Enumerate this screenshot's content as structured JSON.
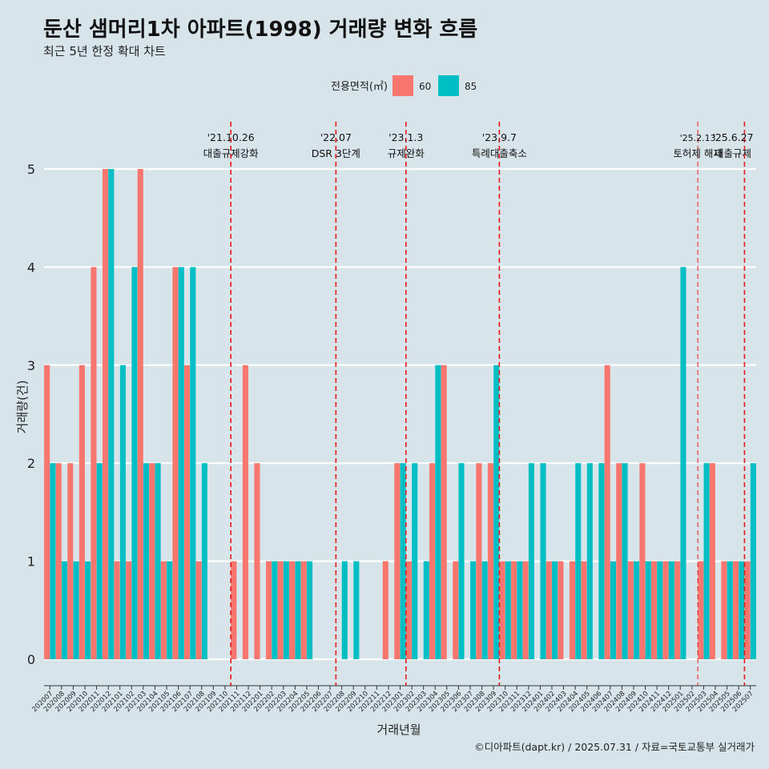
{
  "chart_data": {
    "type": "bar",
    "title": "둔산 샘머리1차 아파트(1998) 거래량 변화 흐름",
    "subtitle": "최근 5년 한정 확대 차트",
    "xlabel": "거래년월",
    "ylabel": "거래량(건)",
    "caption": "©디아파트(dapt.kr) / 2025.07.31 / 자료=국토교통부 실거래가",
    "legend": {
      "title": "전용면적(㎡)",
      "position": "top-center"
    },
    "ylim": [
      0,
      5
    ],
    "yticks": [
      "0",
      "1",
      "2",
      "3",
      "4",
      "5"
    ],
    "categories": [
      "202007",
      "202008",
      "202009",
      "202010",
      "202011",
      "202012",
      "202101",
      "202102",
      "202103",
      "202104",
      "202105",
      "202106",
      "202107",
      "202108",
      "202109",
      "202110",
      "202111",
      "202112",
      "202201",
      "202202",
      "202203",
      "202204",
      "202205",
      "202206",
      "202207",
      "202208",
      "202209",
      "202210",
      "202211",
      "202212",
      "202301",
      "202302",
      "202303",
      "202304",
      "202305",
      "202306",
      "202307",
      "202308",
      "202309",
      "202310",
      "202311",
      "202312",
      "202401",
      "202402",
      "202403",
      "202404",
      "202405",
      "202406",
      "202407",
      "202408",
      "202409",
      "202410",
      "202411",
      "202412",
      "202501",
      "202502",
      "202503",
      "202504",
      "202505",
      "202506",
      "202507"
    ],
    "series": [
      {
        "name": "60",
        "color": "#f8766d",
        "values": [
          3,
          2,
          2,
          3,
          4,
          5,
          1,
          1,
          5,
          2,
          1,
          4,
          3,
          1,
          0,
          0,
          1,
          3,
          2,
          1,
          1,
          1,
          1,
          0,
          0,
          0,
          0,
          0,
          0,
          1,
          2,
          1,
          0,
          2,
          3,
          1,
          0,
          2,
          2,
          1,
          1,
          1,
          0,
          1,
          1,
          1,
          1,
          0,
          3,
          2,
          1,
          2,
          1,
          1,
          1,
          0,
          1,
          2,
          1,
          1,
          1
        ]
      },
      {
        "name": "85",
        "color": "#00bfc4",
        "values": [
          2,
          1,
          1,
          1,
          2,
          5,
          3,
          4,
          2,
          2,
          1,
          4,
          4,
          2,
          0,
          0,
          0,
          0,
          0,
          1,
          1,
          1,
          1,
          0,
          0,
          1,
          1,
          0,
          0,
          0,
          2,
          2,
          1,
          3,
          0,
          2,
          1,
          1,
          3,
          1,
          1,
          2,
          2,
          1,
          0,
          2,
          2,
          2,
          1,
          2,
          1,
          1,
          1,
          1,
          4,
          0,
          2,
          0,
          1,
          1,
          2
        ]
      }
    ],
    "annotations": [
      {
        "date": "'21.10.26",
        "label": "대출규제강화",
        "after": "202110"
      },
      {
        "date": "'22.07",
        "label": "DSR 3단계",
        "after": "202207"
      },
      {
        "date": "'23.1.3",
        "label": "규제완화",
        "after": "202301"
      },
      {
        "date": "'23.9.7",
        "label": "특례대출축소",
        "after": "202309"
      },
      {
        "date": "'25.2.13",
        "label": "토허제 해제",
        "after": "202502"
      },
      {
        "date": "'25.6.27",
        "label": "대출규제",
        "after": "202506"
      }
    ]
  }
}
